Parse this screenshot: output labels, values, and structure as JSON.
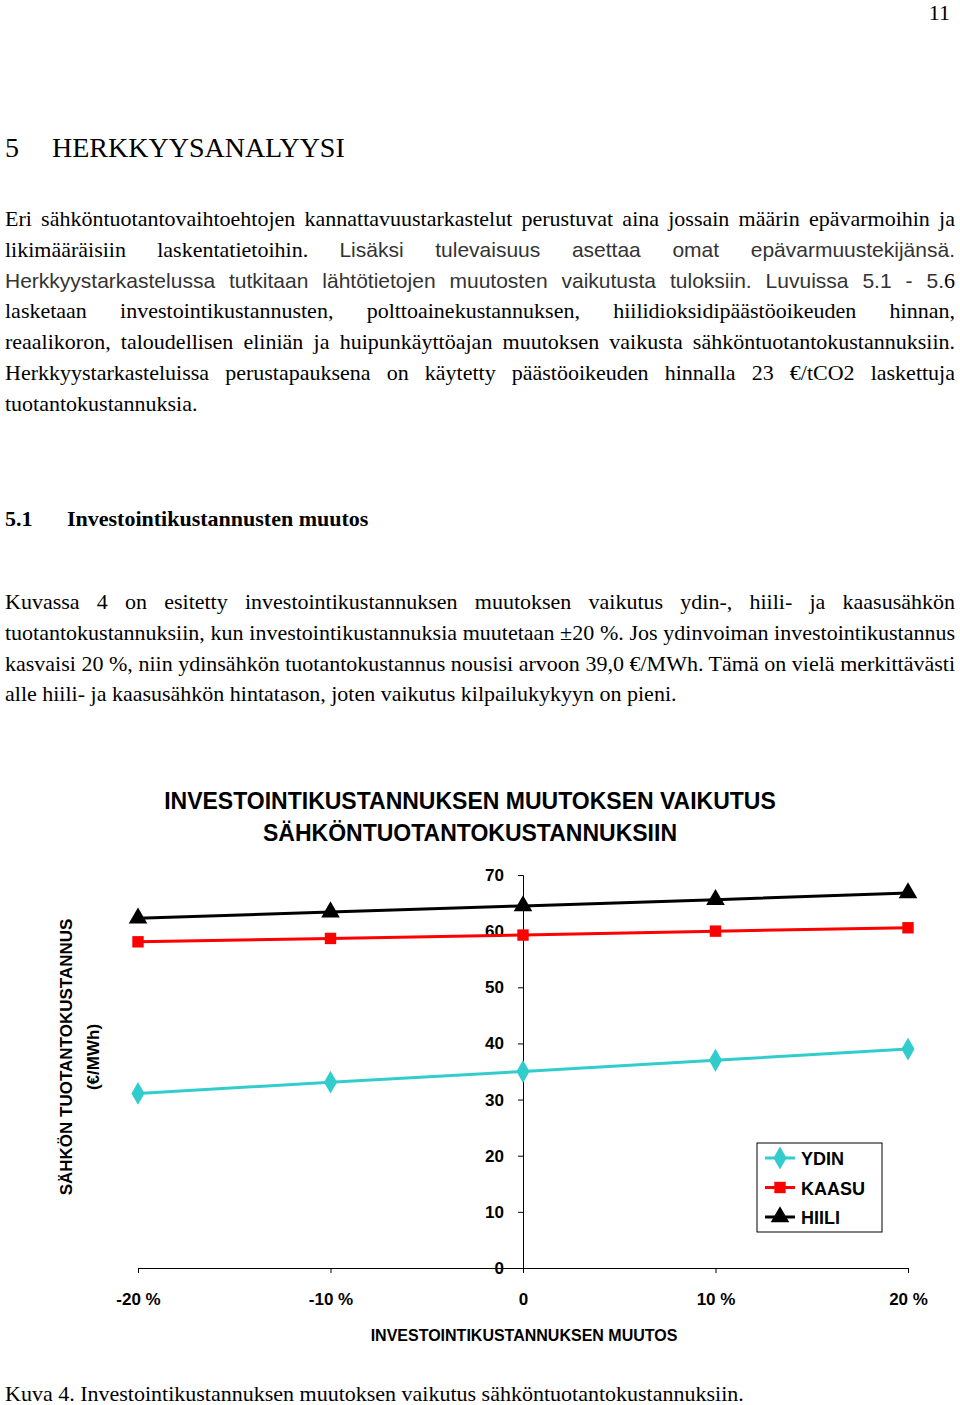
{
  "page_number": "11",
  "heading": {
    "number": "5",
    "title": "HERKKYYSANALYYSI"
  },
  "intro": [
    "Eri sähköntuotantovaihtoehtojen kannattavuustarkastelut perustuvat aina jossain määrin epävarmoihin ja likimääräisiin laskentatietoihin. ",
    "Lisäksi tulevaisuus asettaa omat epävarmuustekijänsä. Herkkyystarkastelussa tutkitaan lähtötietojen muutosten vaikutusta tuloksiin. Luvuissa 5.1 - 5.",
    "6 lasketaan investointikustannusten, polttoainekustannuksen, hiilidioksidipäästöoikeuden hinnan, reaalikoron, taloudellisen eliniän ja huipunkäyttöajan muutoksen vaikusta sähköntuotantokustannuksiin. Herkkyystarkasteluissa perustapauksena on käytetty päästöoikeuden hinnalla 23 €/tCO2 laskettuja tuotantokustannuksia."
  ],
  "section": {
    "number": "5.1",
    "title": "Investointikustannusten muutos"
  },
  "section_text": "Kuvassa 4 on esitetty investointikustannuksen muutoksen vaikutus ydin-, hiili- ja kaasusähkön tuotantokustannuksiin, kun investointikustannuksia muutetaan ±20 %. Jos ydinvoiman investointikustannus kasvaisi 20 %, niin ydinsähkön tuotantokustannus nousisi arvoon 39,0 €/MWh. Tämä on vielä merkittävästi alle hiili- ja kaasusähkön hintatason, joten vaikutus kilpailukykyyn on pieni.",
  "chart_data": {
    "type": "line",
    "title": [
      "INVESTOINTIKUSTANNUKSEN MUUTOKSEN VAIKUTUS",
      "SÄHKÖNTUOTANTOKUSTANNUKSIIN"
    ],
    "xlabel": "INVESTOINTIKUSTANNUKSEN MUUTOS",
    "ylabel": [
      "SÄHKÖN TUOTANTOKUSTANNUS",
      "(€/MWh)"
    ],
    "categories": [
      "-20 %",
      "-10 %",
      "0",
      "10 %",
      "20 %"
    ],
    "series": [
      {
        "name": "YDIN",
        "color": "#33cccc",
        "marker": "diamond",
        "line_style": "solid",
        "values": [
          31.1,
          33.1,
          35.0,
          37.0,
          39.0
        ]
      },
      {
        "name": "KAASU",
        "color": "#ff0000",
        "marker": "square",
        "line_style": "solid",
        "values": [
          58.1,
          58.7,
          59.3,
          60.0,
          60.6
        ]
      },
      {
        "name": "HIILI",
        "color": "#000000",
        "marker": "triangle",
        "line_style": "solid",
        "values": [
          62.3,
          63.4,
          64.5,
          65.6,
          66.8
        ]
      }
    ],
    "ylim": [
      0,
      70
    ],
    "yticks": [
      0,
      10,
      20,
      30,
      40,
      50,
      60,
      70
    ],
    "grid": false,
    "legend": "lower-right"
  },
  "caption": "Kuva 4. Investointikustannuksen muutoksen vaikutus sähköntuotantokustannuksiin."
}
